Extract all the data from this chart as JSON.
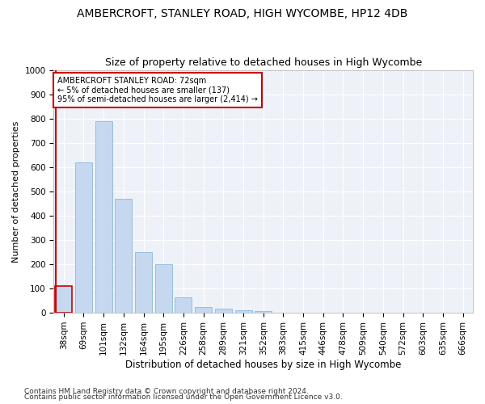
{
  "title1": "AMBERCROFT, STANLEY ROAD, HIGH WYCOMBE, HP12 4DB",
  "title2": "Size of property relative to detached houses in High Wycombe",
  "xlabel": "Distribution of detached houses by size in High Wycombe",
  "ylabel": "Number of detached properties",
  "footer1": "Contains HM Land Registry data © Crown copyright and database right 2024.",
  "footer2": "Contains public sector information licensed under the Open Government Licence v3.0.",
  "categories": [
    "38sqm",
    "69sqm",
    "101sqm",
    "132sqm",
    "164sqm",
    "195sqm",
    "226sqm",
    "258sqm",
    "289sqm",
    "321sqm",
    "352sqm",
    "383sqm",
    "415sqm",
    "446sqm",
    "478sqm",
    "509sqm",
    "540sqm",
    "572sqm",
    "603sqm",
    "635sqm",
    "666sqm"
  ],
  "values": [
    110,
    620,
    790,
    470,
    250,
    200,
    65,
    25,
    18,
    10,
    8,
    0,
    0,
    0,
    0,
    0,
    0,
    0,
    0,
    0,
    0
  ],
  "bar_color": "#c5d8f0",
  "bar_edge_color": "#7aafd4",
  "highlight_bar_index": 0,
  "highlight_edge_color": "#cc0000",
  "annotation_text": "AMBERCROFT STANLEY ROAD: 72sqm\n← 5% of detached houses are smaller (137)\n95% of semi-detached houses are larger (2,414) →",
  "annotation_box_color": "white",
  "annotation_box_edge_color": "#cc0000",
  "vline_x": -0.4,
  "ylim": [
    0,
    1000
  ],
  "yticks": [
    0,
    100,
    200,
    300,
    400,
    500,
    600,
    700,
    800,
    900,
    1000
  ],
  "bg_color": "#ffffff",
  "plot_bg_color": "#eef2f8",
  "grid_color": "white",
  "title1_fontsize": 10,
  "title2_fontsize": 9,
  "xlabel_fontsize": 8.5,
  "ylabel_fontsize": 8,
  "tick_fontsize": 7.5,
  "footer_fontsize": 6.5
}
